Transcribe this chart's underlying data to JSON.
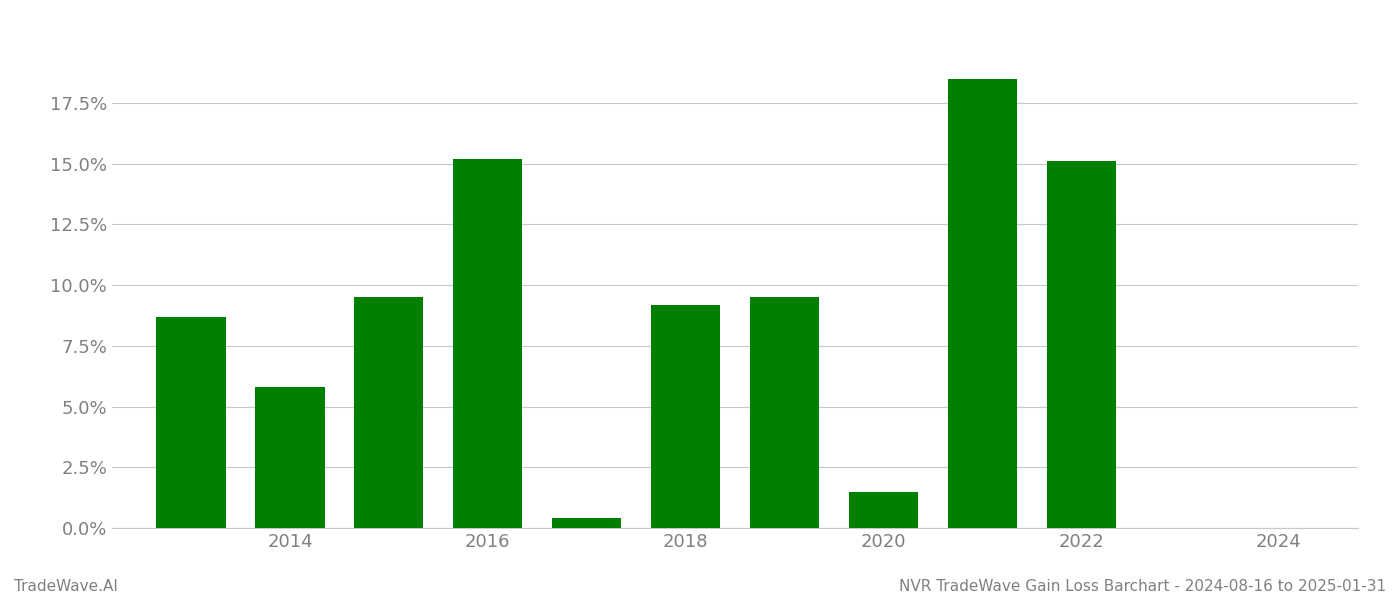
{
  "years": [
    2013,
    2014,
    2015,
    2016,
    2017,
    2018,
    2019,
    2020,
    2021,
    2022,
    2023
  ],
  "values": [
    0.087,
    0.058,
    0.095,
    0.152,
    0.004,
    0.092,
    0.095,
    0.015,
    0.185,
    0.151,
    0.0
  ],
  "bar_color": "#008000",
  "background_color": "#ffffff",
  "grid_color": "#c8c8c8",
  "axis_label_color": "#808080",
  "ylabel_ticks": [
    0.0,
    0.025,
    0.05,
    0.075,
    0.1,
    0.125,
    0.15,
    0.175
  ],
  "xtick_positions": [
    2014,
    2016,
    2018,
    2020,
    2022,
    2024
  ],
  "xlim": [
    2012.2,
    2024.8
  ],
  "ylim": [
    0.0,
    0.205
  ],
  "footer_left": "TradeWave.AI",
  "footer_right": "NVR TradeWave Gain Loss Barchart - 2024-08-16 to 2025-01-31",
  "footer_color": "#808080",
  "footer_fontsize": 11,
  "tick_fontsize": 13,
  "bar_width": 0.7
}
